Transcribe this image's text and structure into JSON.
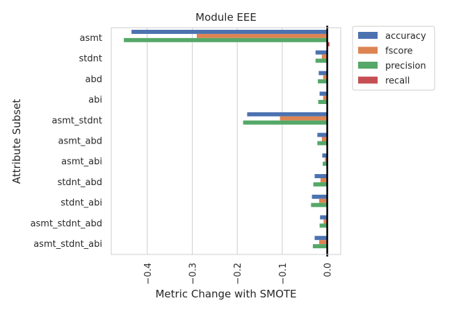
{
  "chart_data": {
    "type": "bar",
    "orientation": "horizontal",
    "title": "Module EEE",
    "xlabel": "Metric Change with SMOTE",
    "ylabel": "Attribute Subset",
    "xlim": [
      -0.48,
      0.03
    ],
    "xticks": [
      -0.4,
      -0.3,
      -0.2,
      -0.1,
      0.0
    ],
    "xtick_labels": [
      "−0.4",
      "−0.3",
      "−0.2",
      "−0.1",
      "0.0"
    ],
    "grid": true,
    "legend_position": "outside-right-top",
    "categories": [
      "asmt",
      "stdnt",
      "abd",
      "abi",
      "asmt_stdnt",
      "asmt_abd",
      "asmt_abi",
      "stdnt_abd",
      "stdnt_abi",
      "asmt_stdnt_abd",
      "asmt_stdnt_abi"
    ],
    "series": [
      {
        "name": "accuracy",
        "color": "#4c72b0",
        "values": [
          -0.435,
          -0.026,
          -0.019,
          -0.017,
          -0.178,
          -0.022,
          -0.011,
          -0.028,
          -0.034,
          -0.016,
          -0.028
        ]
      },
      {
        "name": "fscore",
        "color": "#dd8452",
        "values": [
          -0.29,
          -0.012,
          -0.009,
          -0.009,
          -0.105,
          -0.012,
          -0.005,
          -0.015,
          -0.018,
          -0.008,
          -0.018
        ]
      },
      {
        "name": "precision",
        "color": "#55a868",
        "values": [
          -0.452,
          -0.026,
          -0.021,
          -0.02,
          -0.187,
          -0.022,
          -0.01,
          -0.031,
          -0.036,
          -0.017,
          -0.032
        ]
      },
      {
        "name": "recall",
        "color": "#c44e52",
        "values": [
          0.005,
          0.0,
          0.0,
          0.0,
          0.0,
          0.0,
          0.0,
          0.0,
          0.0,
          0.0,
          0.0
        ]
      }
    ],
    "reference_line_x": 0.0
  }
}
